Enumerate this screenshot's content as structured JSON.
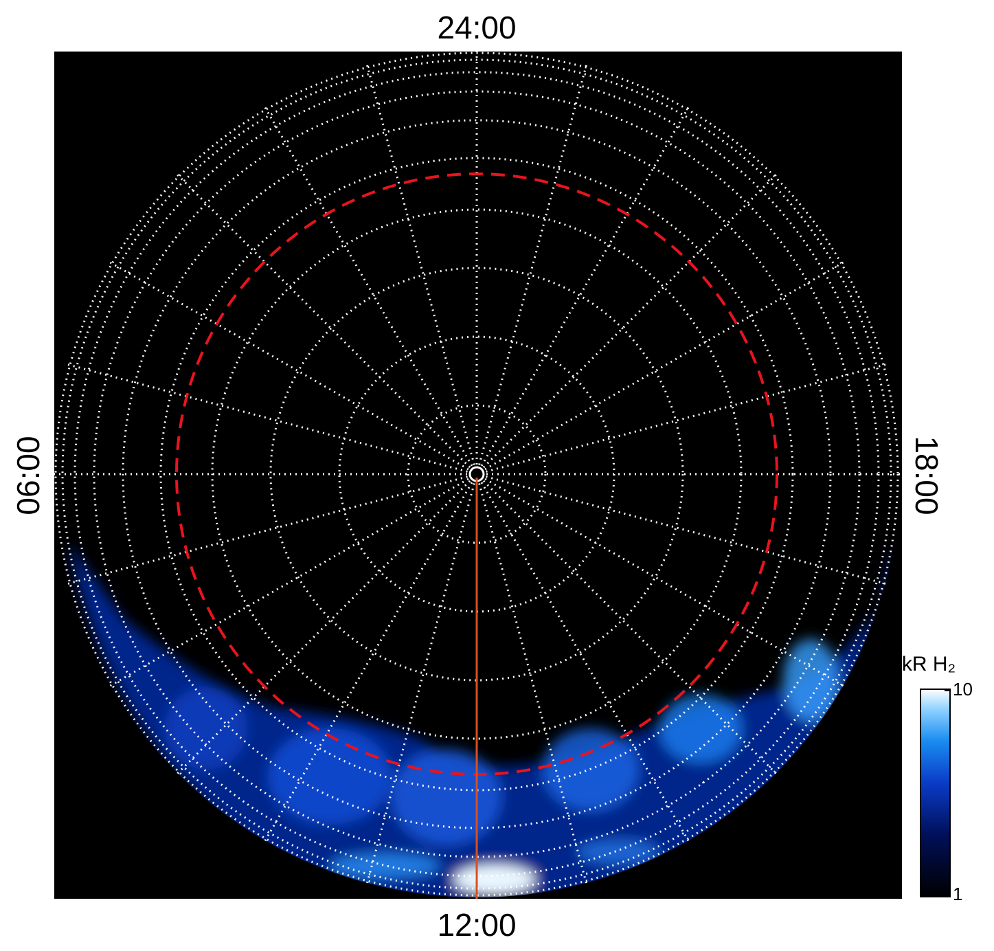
{
  "labels": {
    "top": "24:00",
    "bottom": "12:00",
    "left": "06:00",
    "right": "18:00"
  },
  "colorbar": {
    "title": "kR H₂",
    "lim": [
      1,
      10
    ],
    "ticks": [
      1,
      10
    ],
    "log_scale": true
  }
}
